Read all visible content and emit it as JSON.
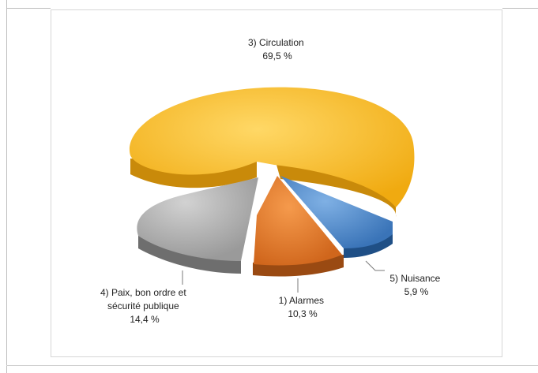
{
  "chart_data": {
    "type": "pie",
    "style": "3d-exploded",
    "slices": [
      {
        "key": "circulation",
        "label_lines": [
          "3) Circulation"
        ],
        "value_text": "69,5 %",
        "value": 69.5,
        "color": "#f5b81c",
        "side": "#c98a0a"
      },
      {
        "key": "nuisance",
        "label_lines": [
          "5) Nuisance"
        ],
        "value_text": "5,9 %",
        "value": 5.9,
        "color": "#4a86c8",
        "side": "#1f4f86"
      },
      {
        "key": "alarmes",
        "label_lines": [
          "1) Alarmes"
        ],
        "value_text": "10,3 %",
        "value": 10.3,
        "color": "#e07a2a",
        "side": "#9a4a12"
      },
      {
        "key": "paix",
        "label_lines": [
          "4) Paix,  bon ordre et",
          "sécurité  publique"
        ],
        "value_text": "14,4 %",
        "value": 14.4,
        "color": "#a9a9a9",
        "side": "#6e6e6e"
      }
    ]
  }
}
